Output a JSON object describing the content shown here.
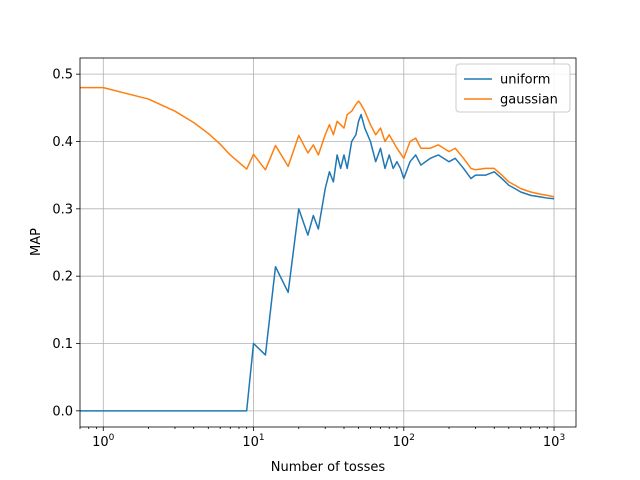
{
  "chart_data": {
    "type": "line",
    "title": "",
    "xlabel": "Number of tosses",
    "ylabel": "MAP",
    "xscale": "log",
    "xlim": [
      0.7,
      1400
    ],
    "ylim": [
      -0.024,
      0.524
    ],
    "x_ticks": [
      {
        "value": 1,
        "base": "10",
        "exp": "0"
      },
      {
        "value": 10,
        "base": "10",
        "exp": "1"
      },
      {
        "value": 100,
        "base": "10",
        "exp": "2"
      },
      {
        "value": 1000,
        "base": "10",
        "exp": "3"
      }
    ],
    "y_ticks": [
      {
        "value": 0.0,
        "label": "0.0"
      },
      {
        "value": 0.1,
        "label": "0.1"
      },
      {
        "value": 0.2,
        "label": "0.2"
      },
      {
        "value": 0.3,
        "label": "0.3"
      },
      {
        "value": 0.4,
        "label": "0.4"
      },
      {
        "value": 0.5,
        "label": "0.5"
      }
    ],
    "grid": true,
    "legend_position": "top-right",
    "series": [
      {
        "name": "uniform",
        "color": "#1f77b4",
        "points": [
          [
            0.7,
            0.0
          ],
          [
            1,
            0.0
          ],
          [
            2,
            0.0
          ],
          [
            3,
            0.0
          ],
          [
            5,
            0.0
          ],
          [
            9,
            0.0
          ],
          [
            10,
            0.1
          ],
          [
            12,
            0.083
          ],
          [
            14,
            0.214
          ],
          [
            17,
            0.176
          ],
          [
            20,
            0.3
          ],
          [
            23,
            0.261
          ],
          [
            25,
            0.29
          ],
          [
            27,
            0.27
          ],
          [
            30,
            0.33
          ],
          [
            32,
            0.355
          ],
          [
            34,
            0.34
          ],
          [
            36,
            0.38
          ],
          [
            38,
            0.36
          ],
          [
            40,
            0.38
          ],
          [
            42,
            0.36
          ],
          [
            45,
            0.4
          ],
          [
            48,
            0.41
          ],
          [
            50,
            0.43
          ],
          [
            52,
            0.44
          ],
          [
            55,
            0.42
          ],
          [
            60,
            0.4
          ],
          [
            65,
            0.37
          ],
          [
            70,
            0.39
          ],
          [
            75,
            0.36
          ],
          [
            80,
            0.38
          ],
          [
            85,
            0.36
          ],
          [
            90,
            0.37
          ],
          [
            95,
            0.36
          ],
          [
            100,
            0.345
          ],
          [
            110,
            0.37
          ],
          [
            120,
            0.38
          ],
          [
            130,
            0.365
          ],
          [
            150,
            0.375
          ],
          [
            170,
            0.38
          ],
          [
            200,
            0.37
          ],
          [
            220,
            0.375
          ],
          [
            250,
            0.36
          ],
          [
            280,
            0.345
          ],
          [
            300,
            0.35
          ],
          [
            350,
            0.35
          ],
          [
            400,
            0.355
          ],
          [
            450,
            0.345
          ],
          [
            500,
            0.335
          ],
          [
            550,
            0.33
          ],
          [
            600,
            0.325
          ],
          [
            700,
            0.32
          ],
          [
            800,
            0.318
          ],
          [
            900,
            0.316
          ],
          [
            1000,
            0.315
          ]
        ]
      },
      {
        "name": "gaussian",
        "color": "#ff7f0e",
        "points": [
          [
            0.7,
            0.48
          ],
          [
            1,
            0.48
          ],
          [
            2,
            0.463
          ],
          [
            3,
            0.445
          ],
          [
            4,
            0.428
          ],
          [
            5,
            0.412
          ],
          [
            6,
            0.396
          ],
          [
            7,
            0.38
          ],
          [
            9,
            0.359
          ],
          [
            10,
            0.381
          ],
          [
            12,
            0.358
          ],
          [
            14,
            0.394
          ],
          [
            17,
            0.363
          ],
          [
            20,
            0.409
          ],
          [
            23,
            0.383
          ],
          [
            25,
            0.395
          ],
          [
            27,
            0.38
          ],
          [
            30,
            0.41
          ],
          [
            32,
            0.425
          ],
          [
            34,
            0.41
          ],
          [
            36,
            0.43
          ],
          [
            40,
            0.42
          ],
          [
            42,
            0.44
          ],
          [
            45,
            0.445
          ],
          [
            48,
            0.455
          ],
          [
            50,
            0.46
          ],
          [
            52,
            0.455
          ],
          [
            55,
            0.445
          ],
          [
            60,
            0.425
          ],
          [
            65,
            0.41
          ],
          [
            70,
            0.42
          ],
          [
            75,
            0.4
          ],
          [
            80,
            0.41
          ],
          [
            90,
            0.39
          ],
          [
            100,
            0.375
          ],
          [
            110,
            0.4
          ],
          [
            120,
            0.405
          ],
          [
            130,
            0.39
          ],
          [
            150,
            0.39
          ],
          [
            170,
            0.395
          ],
          [
            200,
            0.385
          ],
          [
            220,
            0.39
          ],
          [
            250,
            0.375
          ],
          [
            280,
            0.36
          ],
          [
            300,
            0.358
          ],
          [
            350,
            0.36
          ],
          [
            400,
            0.36
          ],
          [
            450,
            0.35
          ],
          [
            500,
            0.34
          ],
          [
            550,
            0.335
          ],
          [
            600,
            0.33
          ],
          [
            700,
            0.325
          ],
          [
            800,
            0.322
          ],
          [
            900,
            0.32
          ],
          [
            1000,
            0.318
          ]
        ]
      }
    ]
  }
}
